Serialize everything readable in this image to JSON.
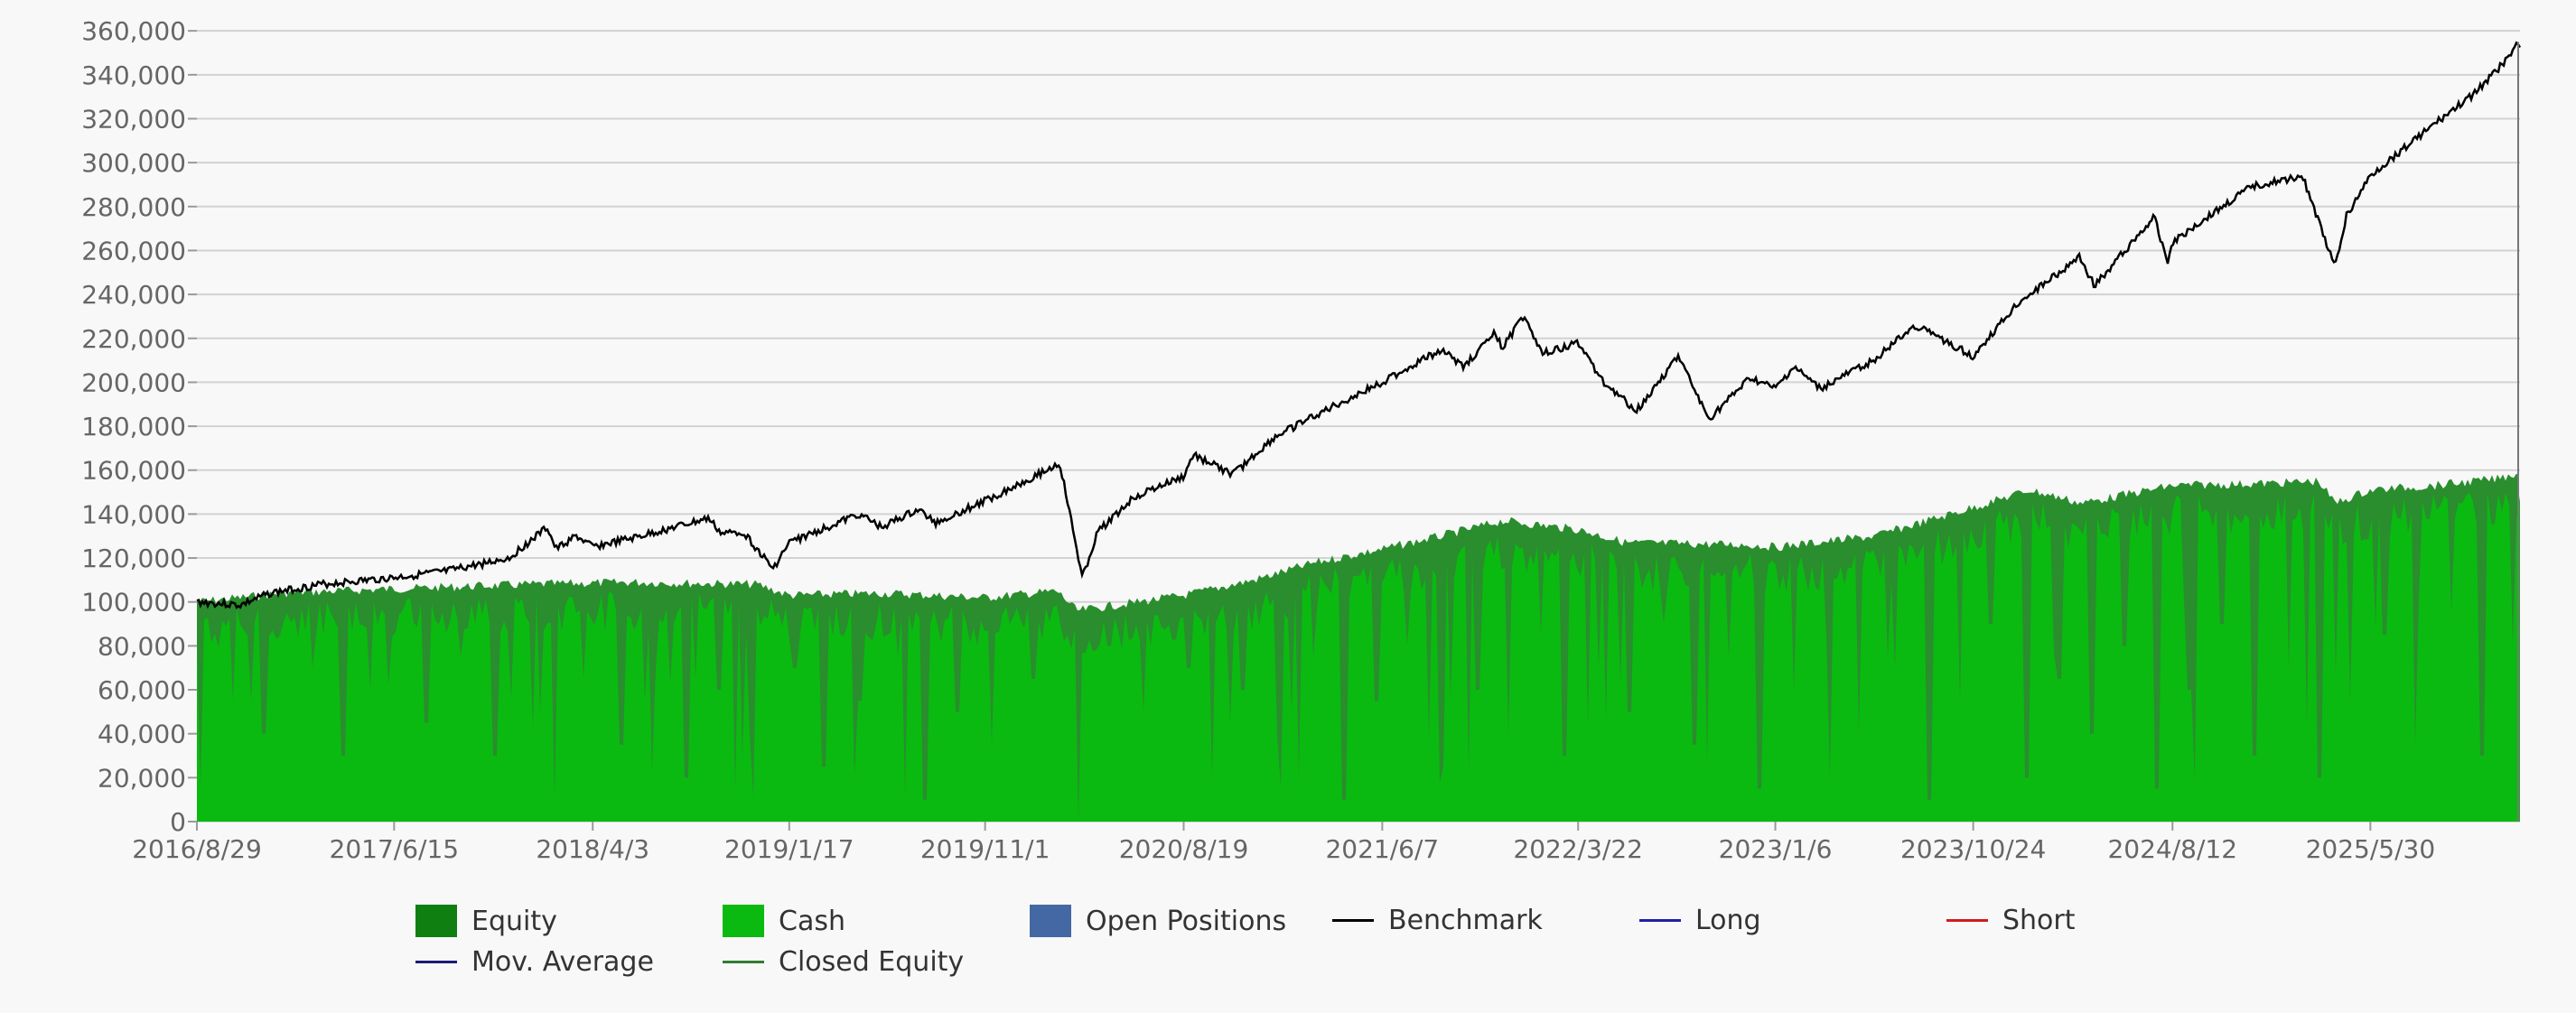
{
  "chart_data": {
    "type": "area",
    "title": "",
    "xlabel": "",
    "ylabel": "",
    "ylim": [
      0,
      365000
    ],
    "y_ticks": [
      0,
      20000,
      40000,
      60000,
      80000,
      100000,
      120000,
      140000,
      160000,
      180000,
      200000,
      220000,
      240000,
      260000,
      280000,
      300000,
      320000,
      340000,
      360000
    ],
    "y_tick_labels": [
      "0",
      "20,000",
      "40,000",
      "60,000",
      "80,000",
      "100,000",
      "120,000",
      "140,000",
      "160,000",
      "180,000",
      "200,000",
      "220,000",
      "240,000",
      "260,000",
      "280,000",
      "300,000",
      "320,000",
      "340,000",
      "360,000"
    ],
    "x_range": [
      "2016-08-29",
      "2026-01-05"
    ],
    "x_ticks": [
      "2016-08-29",
      "2017-06-15",
      "2018-04-03",
      "2019-01-17",
      "2019-11-01",
      "2020-08-19",
      "2021-06-07",
      "2022-03-22",
      "2023-01-06",
      "2023-10-24",
      "2024-08-12",
      "2025-05-30"
    ],
    "x_tick_labels": [
      "2016/8/29",
      "2017/6/15",
      "2018/4/3",
      "2019/1/17",
      "2019/11/1",
      "2020/8/19",
      "2021/6/7",
      "2022/3/22",
      "2023/1/6",
      "2023/10/24",
      "2024/8/12",
      "2025/5/30"
    ],
    "grid": true,
    "legend_position": "bottom",
    "legend": [
      {
        "label": "Equity",
        "symbol": "box",
        "color": "#0f7f12"
      },
      {
        "label": "Cash",
        "symbol": "box",
        "color": "#0aba10"
      },
      {
        "label": "Open Positions",
        "symbol": "box",
        "color": "#4468a3"
      },
      {
        "label": "Benchmark",
        "symbol": "line",
        "color": "#000000"
      },
      {
        "label": "Long",
        "symbol": "line",
        "color": "#1f1fa8"
      },
      {
        "label": "Short",
        "symbol": "line",
        "color": "#d01c1c"
      },
      {
        "label": "Mov. Average",
        "symbol": "line",
        "color": "#1a1a7a"
      },
      {
        "label": "Closed Equity",
        "symbol": "line",
        "color": "#2e7d32"
      }
    ],
    "series": [
      {
        "name": "Benchmark",
        "color": "#000000",
        "points": [
          [
            "2016-08-29",
            100000
          ],
          [
            "2016-11-01",
            98500
          ],
          [
            "2016-12-15",
            104000
          ],
          [
            "2017-03-01",
            108000
          ],
          [
            "2017-06-15",
            111000
          ],
          [
            "2017-09-01",
            114000
          ],
          [
            "2017-12-01",
            120000
          ],
          [
            "2018-01-26",
            134000
          ],
          [
            "2018-02-08",
            124000
          ],
          [
            "2018-03-10",
            130000
          ],
          [
            "2018-04-03",
            125000
          ],
          [
            "2018-06-01",
            129000
          ],
          [
            "2018-09-20",
            138000
          ],
          [
            "2018-10-10",
            131000
          ],
          [
            "2018-11-10",
            132000
          ],
          [
            "2018-12-24",
            115000
          ],
          [
            "2019-01-17",
            127000
          ],
          [
            "2019-04-30",
            140000
          ],
          [
            "2019-06-01",
            134000
          ],
          [
            "2019-07-26",
            142000
          ],
          [
            "2019-08-20",
            136000
          ],
          [
            "2019-11-01",
            146000
          ],
          [
            "2020-02-19",
            163000
          ],
          [
            "2020-03-23",
            111000
          ],
          [
            "2020-04-15",
            132000
          ],
          [
            "2020-06-08",
            148000
          ],
          [
            "2020-08-19",
            157000
          ],
          [
            "2020-09-02",
            167000
          ],
          [
            "2020-10-30",
            158000
          ],
          [
            "2020-12-31",
            175000
          ],
          [
            "2021-03-01",
            185000
          ],
          [
            "2021-06-07",
            200000
          ],
          [
            "2021-09-02",
            215000
          ],
          [
            "2021-10-04",
            207000
          ],
          [
            "2021-11-18",
            222000
          ],
          [
            "2021-12-01",
            216000
          ],
          [
            "2022-01-03",
            231000
          ],
          [
            "2022-01-27",
            213000
          ],
          [
            "2022-03-22",
            218000
          ],
          [
            "2022-04-29",
            200000
          ],
          [
            "2022-06-16",
            187000
          ],
          [
            "2022-08-16",
            212000
          ],
          [
            "2022-09-30",
            183000
          ],
          [
            "2022-11-30",
            202000
          ],
          [
            "2023-01-06",
            197000
          ],
          [
            "2023-02-02",
            207000
          ],
          [
            "2023-03-13",
            197000
          ],
          [
            "2023-05-30",
            210000
          ],
          [
            "2023-07-31",
            226000
          ],
          [
            "2023-10-24",
            212000
          ],
          [
            "2023-12-29",
            236000
          ],
          [
            "2024-03-28",
            257000
          ],
          [
            "2024-04-19",
            244000
          ],
          [
            "2024-07-16",
            275000
          ],
          [
            "2024-08-05",
            255000
          ],
          [
            "2024-08-12",
            264000
          ],
          [
            "2024-12-06",
            289000
          ],
          [
            "2025-02-19",
            294000
          ],
          [
            "2025-04-08",
            252000
          ],
          [
            "2025-04-25",
            276000
          ],
          [
            "2025-05-30",
            294000
          ],
          [
            "2025-08-01",
            310000
          ],
          [
            "2025-10-28",
            331000
          ],
          [
            "2025-12-20",
            348000
          ],
          [
            "2026-01-01",
            355000
          ],
          [
            "2026-01-05",
            351000
          ]
        ]
      },
      {
        "name": "Equity",
        "color": "#0f7f12",
        "points": [
          [
            "2016-08-29",
            100000
          ],
          [
            "2017-01-01",
            104000
          ],
          [
            "2017-06-15",
            106000
          ],
          [
            "2018-01-01",
            108000
          ],
          [
            "2018-06-01",
            109000
          ],
          [
            "2018-12-01",
            108000
          ],
          [
            "2019-01-17",
            103000
          ],
          [
            "2019-06-01",
            104000
          ],
          [
            "2019-11-01",
            102000
          ],
          [
            "2020-02-15",
            105000
          ],
          [
            "2020-03-15",
            96000
          ],
          [
            "2020-08-19",
            103000
          ],
          [
            "2020-12-01",
            110000
          ],
          [
            "2021-03-01",
            118000
          ],
          [
            "2021-06-07",
            124000
          ],
          [
            "2021-09-01",
            130000
          ],
          [
            "2021-12-01",
            137000
          ],
          [
            "2022-03-22",
            133000
          ],
          [
            "2022-06-01",
            127000
          ],
          [
            "2022-12-01",
            126000
          ],
          [
            "2023-01-06",
            125000
          ],
          [
            "2023-06-01",
            130000
          ],
          [
            "2023-10-24",
            143000
          ],
          [
            "2024-01-15",
            151000
          ],
          [
            "2024-04-01",
            145000
          ],
          [
            "2024-08-12",
            153000
          ],
          [
            "2025-01-01",
            154000
          ],
          [
            "2025-03-15",
            155000
          ],
          [
            "2025-04-08",
            145000
          ],
          [
            "2025-05-30",
            151000
          ],
          [
            "2025-09-01",
            153000
          ],
          [
            "2025-12-01",
            156000
          ],
          [
            "2026-01-05",
            159000
          ]
        ]
      }
    ],
    "cash_dips": [
      [
        "2016-09-03",
        15000
      ],
      [
        "2016-10-20",
        55000
      ],
      [
        "2016-12-05",
        40000
      ],
      [
        "2017-02-14",
        70000
      ],
      [
        "2017-04-01",
        30000
      ],
      [
        "2017-05-10",
        60000
      ],
      [
        "2017-08-01",
        45000
      ],
      [
        "2017-09-20",
        75000
      ],
      [
        "2017-11-10",
        30000
      ],
      [
        "2018-01-15",
        50000
      ],
      [
        "2018-02-06",
        10000
      ],
      [
        "2018-03-20",
        65000
      ],
      [
        "2018-05-15",
        35000
      ],
      [
        "2018-07-01",
        70000
      ],
      [
        "2018-08-20",
        20000
      ],
      [
        "2018-10-05",
        60000
      ],
      [
        "2018-11-20",
        40000
      ],
      [
        "2019-01-25",
        70000
      ],
      [
        "2019-03-10",
        25000
      ],
      [
        "2019-05-01",
        55000
      ],
      [
        "2019-06-25",
        75000
      ],
      [
        "2019-08-05",
        10000
      ],
      [
        "2019-09-20",
        50000
      ],
      [
        "2019-11-10",
        35000
      ],
      [
        "2020-01-10",
        65000
      ],
      [
        "2020-03-18",
        0
      ],
      [
        "2020-05-01",
        80000
      ],
      [
        "2020-06-20",
        50000
      ],
      [
        "2020-08-25",
        70000
      ],
      [
        "2020-10-01",
        20000
      ],
      [
        "2020-11-15",
        60000
      ],
      [
        "2021-01-05",
        40000
      ],
      [
        "2021-02-25",
        75000
      ],
      [
        "2021-04-12",
        10000
      ],
      [
        "2021-05-30",
        55000
      ],
      [
        "2021-07-15",
        80000
      ],
      [
        "2021-09-05",
        25000
      ],
      [
        "2021-10-25",
        60000
      ],
      [
        "2021-12-10",
        40000
      ],
      [
        "2022-01-25",
        85000
      ],
      [
        "2022-03-01",
        30000
      ],
      [
        "2022-04-20",
        70000
      ],
      [
        "2022-06-05",
        50000
      ],
      [
        "2022-07-25",
        90000
      ],
      [
        "2022-09-10",
        35000
      ],
      [
        "2022-10-30",
        75000
      ],
      [
        "2022-12-15",
        15000
      ],
      [
        "2023-02-01",
        60000
      ],
      [
        "2023-03-25",
        85000
      ],
      [
        "2023-05-10",
        40000
      ],
      [
        "2023-06-30",
        70000
      ],
      [
        "2023-08-20",
        10000
      ],
      [
        "2023-10-05",
        55000
      ],
      [
        "2023-11-20",
        90000
      ],
      [
        "2024-01-10",
        20000
      ],
      [
        "2024-02-28",
        65000
      ],
      [
        "2024-04-15",
        40000
      ],
      [
        "2024-06-01",
        80000
      ],
      [
        "2024-07-20",
        15000
      ],
      [
        "2024-09-05",
        60000
      ],
      [
        "2024-10-25",
        90000
      ],
      [
        "2024-12-10",
        30000
      ],
      [
        "2025-01-30",
        70000
      ],
      [
        "2025-03-15",
        20000
      ],
      [
        "2025-05-01",
        55000
      ],
      [
        "2025-06-20",
        85000
      ],
      [
        "2025-08-05",
        35000
      ],
      [
        "2025-09-25",
        95000
      ],
      [
        "2025-11-10",
        30000
      ],
      [
        "2025-12-25",
        80000
      ]
    ]
  }
}
